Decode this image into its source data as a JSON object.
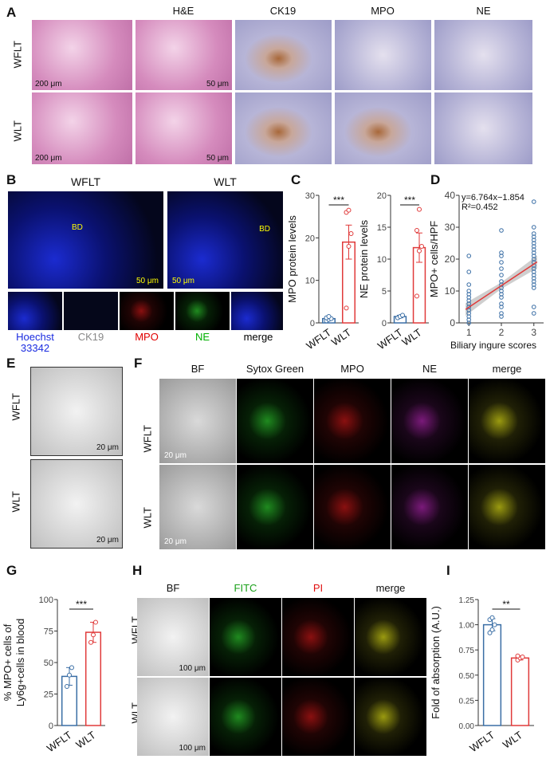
{
  "panels": {
    "A": "A",
    "B": "B",
    "C": "C",
    "D": "D",
    "E": "E",
    "F": "F",
    "G": "G",
    "H": "H",
    "I": "I"
  },
  "groups": {
    "wflt": "WFLT",
    "wlt": "WLT"
  },
  "panelA": {
    "headers": [
      "H&E",
      "CK19",
      "MPO",
      "NE"
    ],
    "scale_200": "200 μm",
    "scale_50": "50 μm"
  },
  "panelB": {
    "wflt": "WFLT",
    "wlt": "WLT",
    "bd": "BD",
    "scale": "50 μm",
    "channels": [
      "Hoechst\n33342",
      "CK19",
      "MPO",
      "NE",
      "merge"
    ],
    "channel_colors": [
      "#1a2be0",
      "#888888",
      "#e00000",
      "#00b000",
      "#000000"
    ]
  },
  "panelE": {
    "scale": "20 μm"
  },
  "panelF": {
    "headers": [
      "BF",
      "Sytox Green",
      "MPO",
      "NE",
      "merge"
    ],
    "scale": "20 μm"
  },
  "panelH": {
    "headers": [
      "BF",
      "FITC",
      "PI",
      "merge"
    ],
    "header_colors": [
      "#111111",
      "#1aa01a",
      "#e01010",
      "#111111"
    ],
    "scale": "100 μm"
  },
  "chart_data": [
    {
      "id": "C1",
      "type": "bar",
      "categories": [
        "WFLT",
        "WLT"
      ],
      "values": [
        1.0,
        19.0
      ],
      "errors": [
        0.4,
        4.0
      ],
      "points": [
        [
          0.5,
          0.8,
          1.0,
          1.2,
          1.5
        ],
        [
          3.5,
          18,
          21,
          26,
          26.5
        ]
      ],
      "ylabel": "MPO protein levels",
      "ylim": [
        0,
        30
      ],
      "yticks": [
        0,
        10,
        20,
        30
      ],
      "significance": "***"
    },
    {
      "id": "C2",
      "type": "bar",
      "categories": [
        "WFLT",
        "WLT"
      ],
      "values": [
        1.0,
        11.8
      ],
      "errors": [
        0.2,
        2.3
      ],
      "points": [
        [
          0.8,
          1.0,
          1.2
        ],
        [
          4.2,
          11.3,
          12.0,
          14.5,
          17.8
        ]
      ],
      "ylabel": "NE protein levels",
      "ylim": [
        0,
        20
      ],
      "yticks": [
        0,
        5,
        10,
        15,
        20
      ],
      "significance": "***"
    },
    {
      "id": "D",
      "type": "scatter",
      "xlabel": "Biliary ingure scores",
      "ylabel": "MPO+ cells/HPF",
      "xlim": [
        0.7,
        3.3
      ],
      "ylim": [
        0,
        40
      ],
      "xticks": [
        1,
        2,
        3
      ],
      "yticks": [
        0,
        10,
        20,
        30,
        40
      ],
      "annotation": [
        "y=6.764x−1.854",
        "R²=0.452"
      ],
      "fit": {
        "slope": 6.764,
        "intercept": -1.854
      },
      "points": {
        "1": [
          21,
          16,
          12,
          10,
          9,
          8,
          7,
          6,
          5,
          4,
          3,
          2,
          1,
          0
        ],
        "2": [
          29,
          22,
          21,
          19,
          17,
          15,
          13,
          12,
          11,
          10,
          9,
          8,
          6,
          5,
          3,
          2
        ],
        "3": [
          38,
          30,
          28,
          27,
          26,
          25,
          24,
          23,
          22,
          21,
          20,
          19,
          18,
          17,
          16,
          15,
          14,
          13,
          12,
          11,
          5,
          3
        ]
      }
    },
    {
      "id": "G",
      "type": "bar",
      "categories": [
        "WFLT",
        "WLT"
      ],
      "values": [
        39,
        74
      ],
      "errors": [
        7,
        8
      ],
      "points": [
        [
          31,
          40,
          46
        ],
        [
          66,
          72,
          82
        ]
      ],
      "ylabel": "% MPO+ cells of\nLy6g+cells in blood",
      "ylim": [
        0,
        100
      ],
      "yticks": [
        0,
        25,
        50,
        75,
        100
      ],
      "significance": "***"
    },
    {
      "id": "I",
      "type": "bar",
      "categories": [
        "WFLT",
        "WLT"
      ],
      "values": [
        1.0,
        0.67
      ],
      "errors": [
        0.06,
        0.02
      ],
      "points": [
        [
          0.92,
          0.95,
          1.0,
          1.05,
          1.07
        ],
        [
          0.65,
          0.67,
          0.68,
          0.69
        ]
      ],
      "ylabel": "Fold of absorption (A.U.)",
      "ylim": [
        0,
        1.25
      ],
      "yticks": [
        "0.00",
        "0.25",
        "0.50",
        "0.75",
        "1.00",
        "1.25"
      ],
      "significance": "**"
    }
  ],
  "colors": {
    "wflt": "#3a6ea5",
    "wlt": "#e03a3a"
  }
}
